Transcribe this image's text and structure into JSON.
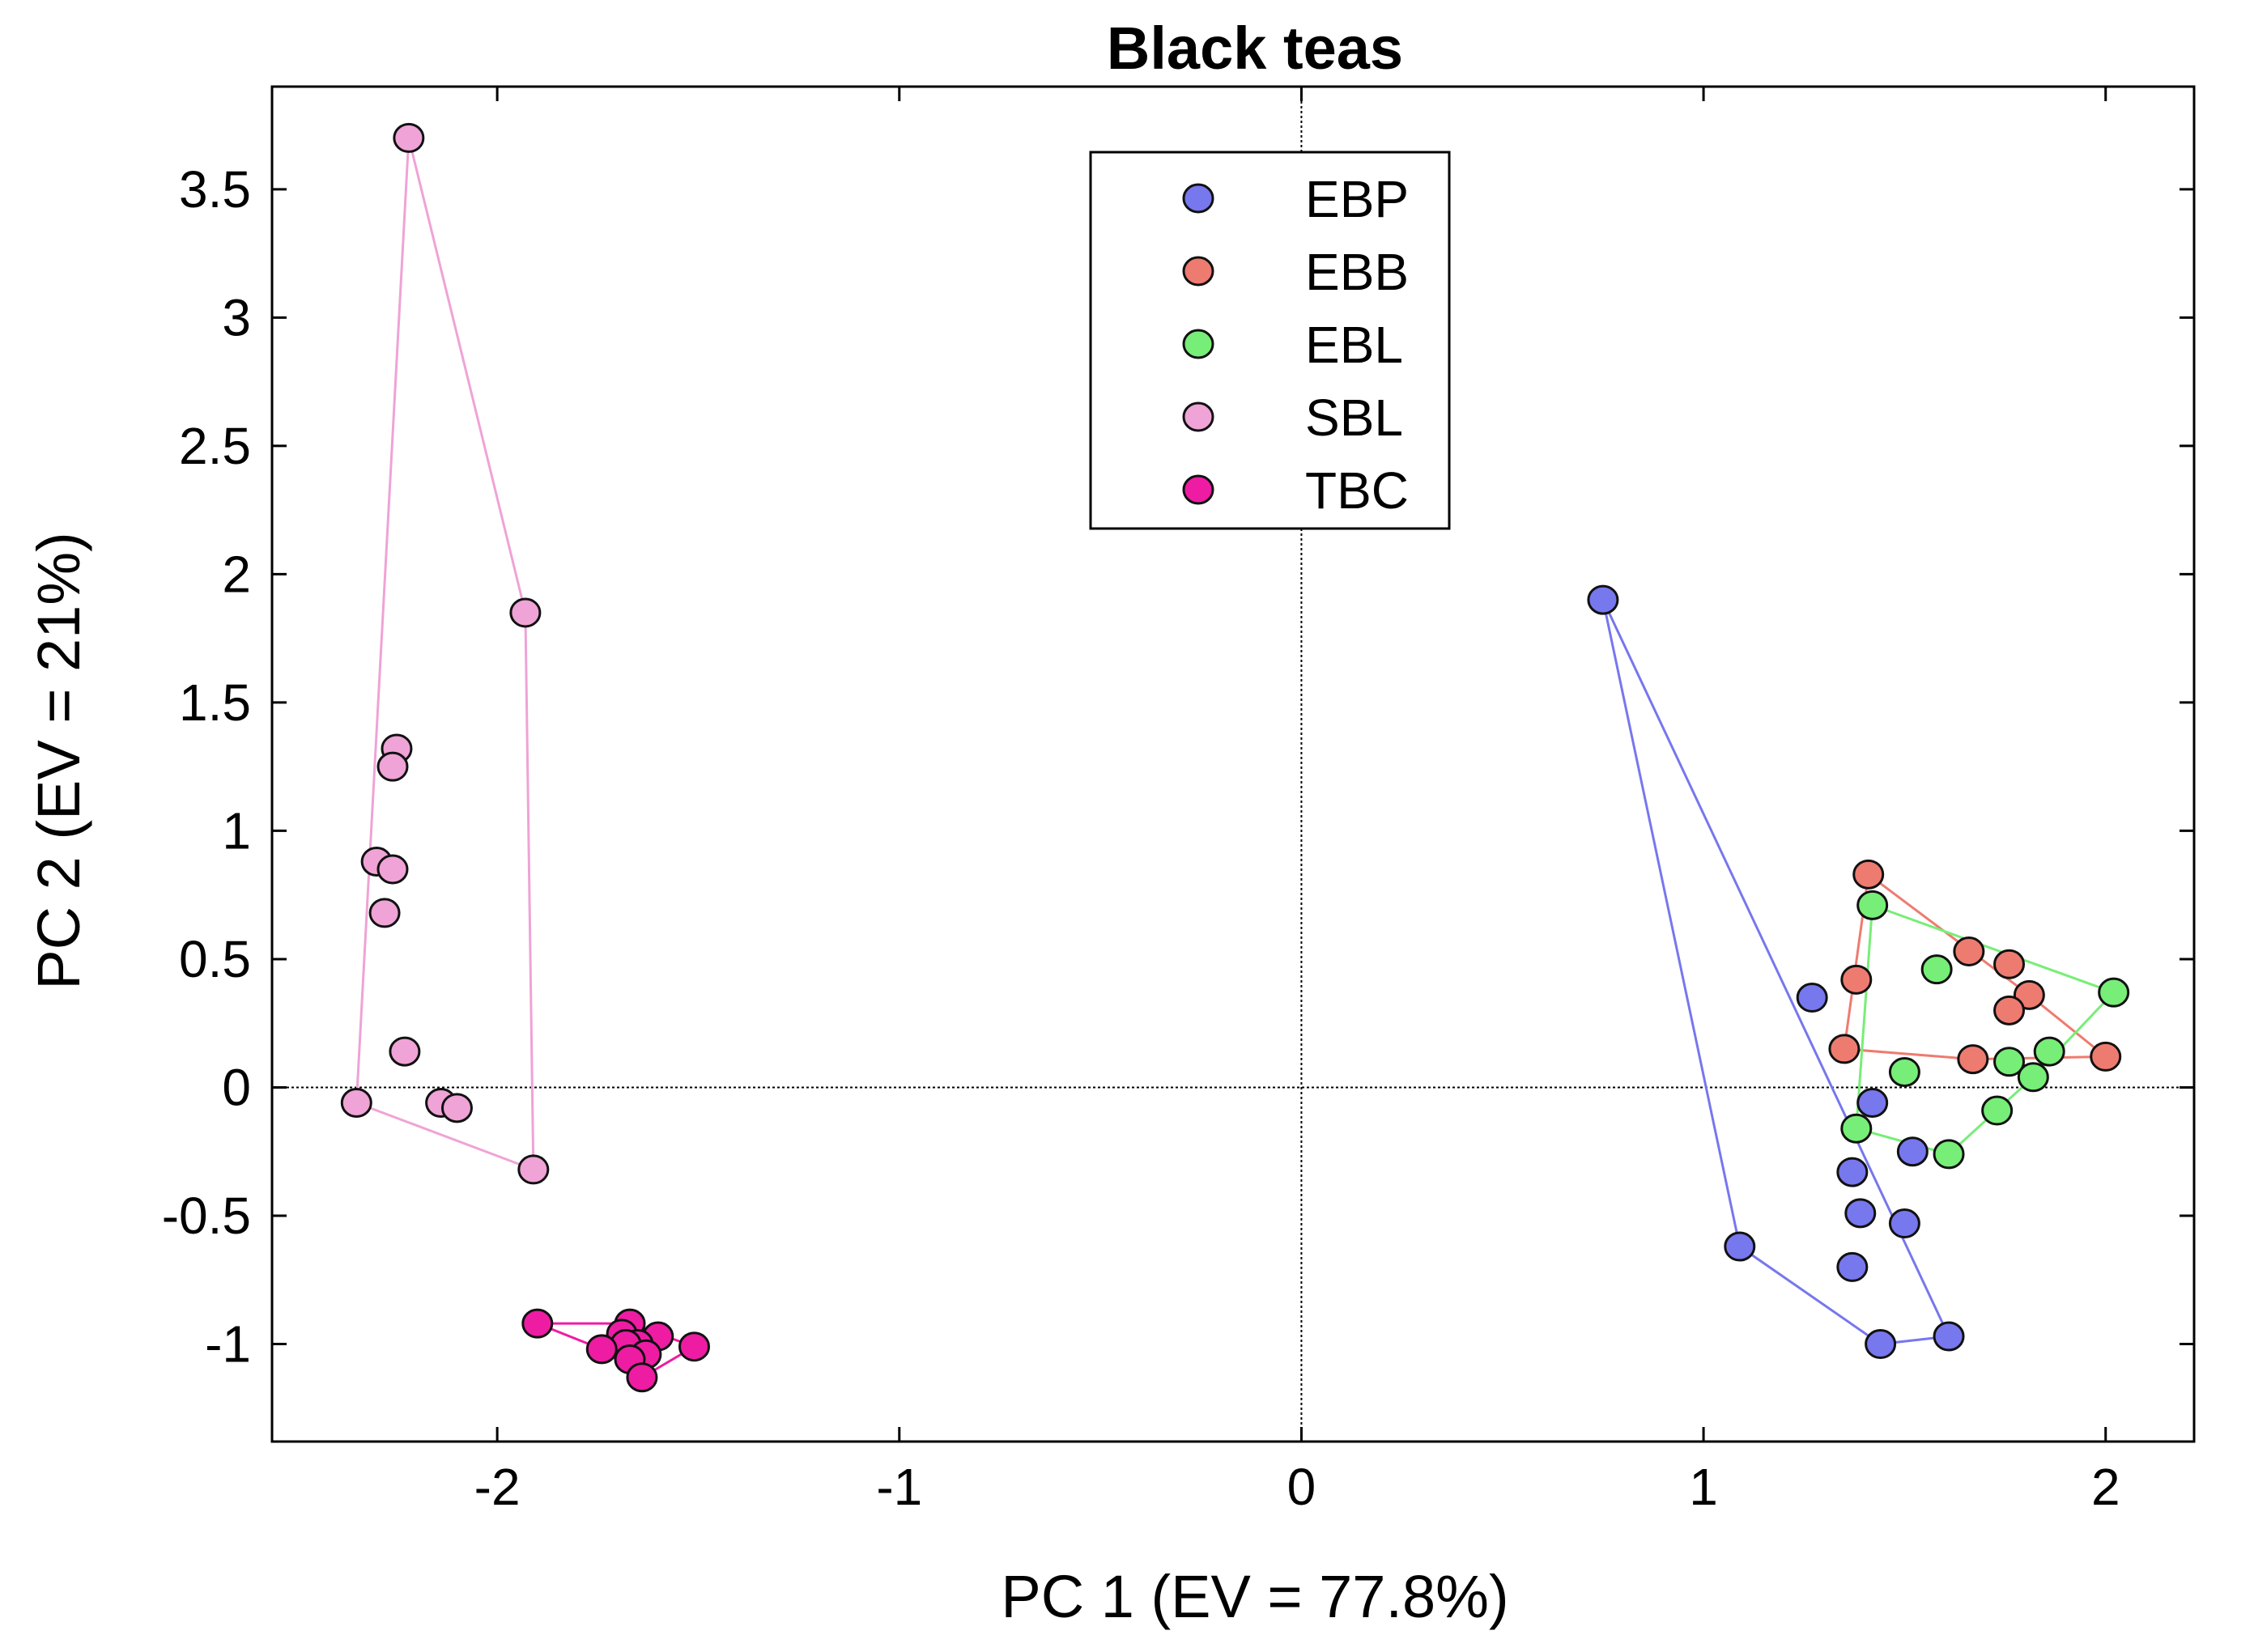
{
  "chart_data": {
    "type": "scatter",
    "title": "Black teas",
    "xlabel": "PC 1 (EV = 77.8%)",
    "ylabel": "PC 2 (EV = 21%)",
    "xlim": [
      -2.56,
      2.22
    ],
    "ylim": [
      -1.38,
      3.9
    ],
    "xticks": [
      -2,
      -1,
      0,
      1,
      2
    ],
    "xtick_labels": [
      "-2",
      "-1",
      "0",
      "1",
      "2"
    ],
    "yticks": [
      -1,
      -0.5,
      0,
      0.5,
      1,
      1.5,
      2,
      2.5,
      3,
      3.5
    ],
    "ytick_labels": [
      "-1",
      "-0.5",
      "0",
      "0.5",
      "1",
      "1.5",
      "2",
      "2.5",
      "3",
      "3.5"
    ],
    "grid": false,
    "zero_lines": true,
    "legend_position": "top-center",
    "series": [
      {
        "name": "EBP",
        "color": "#7777ee",
        "points": [
          [
            0.75,
            1.9
          ],
          [
            1.27,
            0.35
          ],
          [
            1.42,
            -0.06
          ],
          [
            1.52,
            -0.25
          ],
          [
            1.37,
            -0.33
          ],
          [
            1.39,
            -0.49
          ],
          [
            1.5,
            -0.53
          ],
          [
            1.37,
            -0.7
          ],
          [
            1.09,
            -0.62
          ],
          [
            1.44,
            -1.0
          ],
          [
            1.61,
            -0.97
          ]
        ],
        "hull": [
          [
            0.75,
            1.9
          ],
          [
            1.61,
            -0.97
          ],
          [
            1.44,
            -1.0
          ],
          [
            1.09,
            -0.62
          ]
        ]
      },
      {
        "name": "EBB",
        "color": "#ee7b70",
        "points": [
          [
            1.41,
            0.83
          ],
          [
            1.66,
            0.53
          ],
          [
            1.76,
            0.48
          ],
          [
            1.81,
            0.36
          ],
          [
            1.76,
            0.3
          ],
          [
            1.38,
            0.42
          ],
          [
            1.35,
            0.15
          ],
          [
            1.67,
            0.11
          ],
          [
            2.0,
            0.12
          ]
        ],
        "hull": [
          [
            1.41,
            0.83
          ],
          [
            1.81,
            0.36
          ],
          [
            2.0,
            0.12
          ],
          [
            1.67,
            0.11
          ],
          [
            1.35,
            0.15
          ]
        ]
      },
      {
        "name": "EBL",
        "color": "#77ee77",
        "points": [
          [
            1.42,
            0.71
          ],
          [
            1.58,
            0.46
          ],
          [
            2.02,
            0.37
          ],
          [
            1.86,
            0.14
          ],
          [
            1.76,
            0.1
          ],
          [
            1.82,
            0.04
          ],
          [
            1.5,
            0.06
          ],
          [
            1.73,
            -0.09
          ],
          [
            1.38,
            -0.16
          ],
          [
            1.61,
            -0.26
          ]
        ],
        "hull": [
          [
            1.42,
            0.71
          ],
          [
            2.02,
            0.37
          ],
          [
            1.82,
            0.04
          ],
          [
            1.61,
            -0.26
          ],
          [
            1.38,
            -0.16
          ]
        ]
      },
      {
        "name": "SBL",
        "color": "#efa3d6",
        "points": [
          [
            -2.22,
            3.7
          ],
          [
            -1.93,
            1.85
          ],
          [
            -2.25,
            1.32
          ],
          [
            -2.26,
            1.25
          ],
          [
            -2.3,
            0.88
          ],
          [
            -2.26,
            0.85
          ],
          [
            -2.28,
            0.68
          ],
          [
            -2.23,
            0.14
          ],
          [
            -2.14,
            -0.06
          ],
          [
            -2.1,
            -0.08
          ],
          [
            -2.35,
            -0.06
          ],
          [
            -1.91,
            -0.32
          ]
        ],
        "hull": [
          [
            -2.22,
            3.7
          ],
          [
            -1.93,
            1.85
          ],
          [
            -1.91,
            -0.32
          ],
          [
            -2.35,
            -0.06
          ]
        ]
      },
      {
        "name": "TBC",
        "color": "#ee1ca3",
        "points": [
          [
            -1.9,
            -0.92
          ],
          [
            -1.67,
            -0.92
          ],
          [
            -1.69,
            -0.96
          ],
          [
            -1.6,
            -0.97
          ],
          [
            -1.65,
            -1.0
          ],
          [
            -1.68,
            -1.0
          ],
          [
            -1.74,
            -1.02
          ],
          [
            -1.51,
            -1.01
          ],
          [
            -1.63,
            -1.04
          ],
          [
            -1.67,
            -1.06
          ],
          [
            -1.64,
            -1.13
          ]
        ],
        "hull": [
          [
            -1.9,
            -0.92
          ],
          [
            -1.67,
            -0.92
          ],
          [
            -1.51,
            -1.01
          ],
          [
            -1.64,
            -1.13
          ],
          [
            -1.74,
            -1.02
          ]
        ]
      }
    ]
  }
}
